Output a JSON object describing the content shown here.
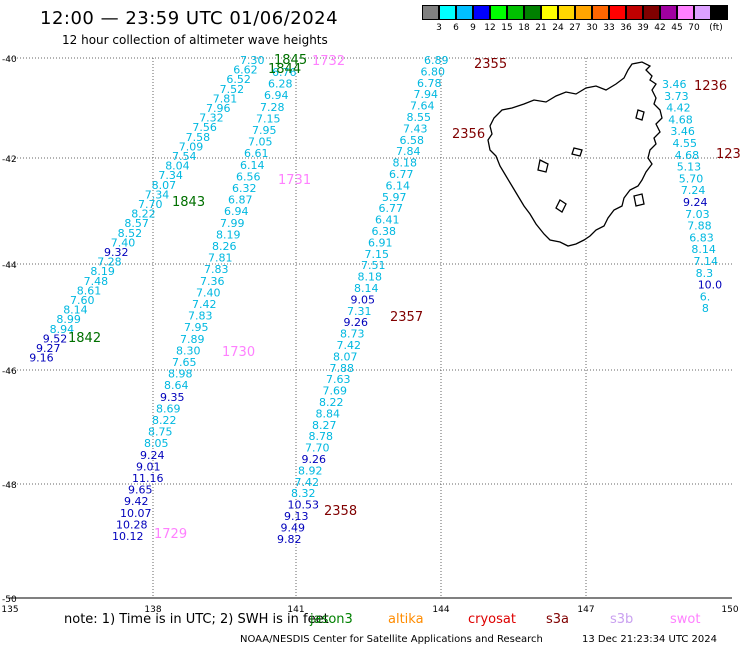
{
  "header": {
    "title": "12:00 — 23:59 UTC 01/06/2024",
    "subtitle": "12 hour collection of altimeter wave heights"
  },
  "legend": {
    "unit": "(ft)",
    "bins": [
      {
        "label": "",
        "color": "#808080"
      },
      {
        "label": "3",
        "color": "#00ffff"
      },
      {
        "label": "6",
        "color": "#00bfff"
      },
      {
        "label": "9",
        "color": "#0000ff"
      },
      {
        "label": "12",
        "color": "#00ff00"
      },
      {
        "label": "15",
        "color": "#00c000"
      },
      {
        "label": "18",
        "color": "#008000"
      },
      {
        "label": "21",
        "color": "#ffff00"
      },
      {
        "label": "24",
        "color": "#ffd700"
      },
      {
        "label": "27",
        "color": "#ffa500"
      },
      {
        "label": "30",
        "color": "#ff6600"
      },
      {
        "label": "33",
        "color": "#ff0000"
      },
      {
        "label": "36",
        "color": "#c00000"
      },
      {
        "label": "39",
        "color": "#800000"
      },
      {
        "label": "42",
        "color": "#a000a0"
      },
      {
        "label": "45",
        "color": "#ff80ff"
      },
      {
        "label": "70",
        "color": "#dda0ff"
      },
      {
        "label": "",
        "color": "#000000"
      }
    ]
  },
  "map": {
    "lon_ticks": [
      "135",
      "138",
      "141",
      "144",
      "147",
      "150"
    ],
    "lat_ticks": [
      "-40",
      "-42",
      "-44",
      "-46",
      "-48",
      "-50"
    ],
    "colors": {
      "cyan": "#00b8e0",
      "deep_cyan": "#00a6c8",
      "blue": "#0000bb",
      "teal": "#00a0d8",
      "green": "#007000",
      "pink": "#ff80ff",
      "maroon": "#800000",
      "coast": "#000000",
      "grid": "#666666"
    },
    "time_labels": [
      {
        "text": "1845",
        "color": "green"
      },
      {
        "text": "1844",
        "color": "green"
      },
      {
        "text": "1843",
        "color": "green"
      },
      {
        "text": "1842",
        "color": "green"
      },
      {
        "text": "1732",
        "color": "pink"
      },
      {
        "text": "1731",
        "color": "pink"
      },
      {
        "text": "1730",
        "color": "pink"
      },
      {
        "text": "1729",
        "color": "pink"
      },
      {
        "text": "2355",
        "color": "maroon"
      },
      {
        "text": "2356",
        "color": "maroon"
      },
      {
        "text": "2357",
        "color": "maroon"
      },
      {
        "text": "2358",
        "color": "maroon"
      },
      {
        "text": "1236",
        "color": "maroon"
      },
      {
        "text": "123",
        "color": "maroon"
      }
    ],
    "tracks": {
      "t1843": {
        "color": "cyan",
        "values": [
          "7.30",
          "6.62",
          "6.52",
          "7.52",
          "7.81",
          "7.96",
          "7.32",
          "7.56",
          "7.58",
          "7.09",
          "7.54",
          "8.04",
          "7.34",
          "8.07",
          "7.34",
          "7.70",
          "8.22",
          "8.57",
          "8.52",
          "7.40",
          "9.32",
          "7.28",
          "8.19",
          "7.48",
          "8.61",
          "7.60",
          "8.14",
          "8.99",
          "8.94",
          "9.52",
          "9.27",
          "9.16"
        ]
      },
      "t1731": {
        "color": "cyan",
        "values": [
          "6.76",
          "6.28",
          "6.94",
          "7.28",
          "7.15",
          "7.95",
          "7.05",
          "6.61",
          "6.14",
          "6.56",
          "6.32",
          "6.87",
          "6.94",
          "7.99",
          "8.19",
          "8.26",
          "7.81",
          "7.83",
          "7.36",
          "7.40",
          "7.42",
          "7.83",
          "7.95",
          "7.89",
          "8.30",
          "7.65",
          "8.98",
          "8.64",
          "9.35",
          "8.69",
          "8.22",
          "8.75",
          "8.05",
          "9.24",
          "9.01",
          "11.16",
          "9.65",
          "9.42",
          "10.07",
          "10.28",
          "10.12"
        ]
      },
      "t2356": {
        "color": "cyan",
        "values": [
          "6.89",
          "6.80",
          "6.78",
          "7.94",
          "7.64",
          "8.55",
          "7.43",
          "6.58",
          "7.84",
          "8.18",
          "6.77",
          "6.14",
          "5.97",
          "6.77",
          "6.41",
          "6.38",
          "6.91",
          "7.15",
          "7.51",
          "8.18",
          "8.14",
          "9.05",
          "7.31",
          "9.26",
          "8.73",
          "7.42",
          "8.07",
          "7.88",
          "7.63",
          "7.69",
          "8.22",
          "8.84",
          "8.27",
          "8.78",
          "7.70",
          "9.26",
          "8.92",
          "7.42",
          "8.32",
          "10.53",
          "9.13",
          "9.49",
          "9.82"
        ]
      },
      "t1236": {
        "color": "cyan",
        "values": [
          "3.46",
          "3.73",
          "4.42",
          "4.68",
          "3.46",
          "4.55",
          "4.68",
          "5.13",
          "5.70",
          "7.24",
          "9.24",
          "7.03",
          "7.88",
          "6.83",
          "8.14",
          "7.14",
          "8.3",
          "10.0",
          "6.",
          "8"
        ]
      }
    }
  },
  "footer": {
    "note": "note:  1) Time is in UTC;  2) SWH is in feet",
    "satellites": [
      {
        "name": "jason3",
        "color": "#008000"
      },
      {
        "name": "altika",
        "color": "#ff8c00"
      },
      {
        "name": "cryosat",
        "color": "#dd0000"
      },
      {
        "name": "s3a",
        "color": "#800000"
      },
      {
        "name": "s3b",
        "color": "#c9a0f0"
      },
      {
        "name": "swot",
        "color": "#ff80ff"
      }
    ],
    "credit": "NOAA/NESDIS Center for Satellite Applications and Research",
    "stamp": "13 Dec 21:23:34 UTC 2024"
  }
}
